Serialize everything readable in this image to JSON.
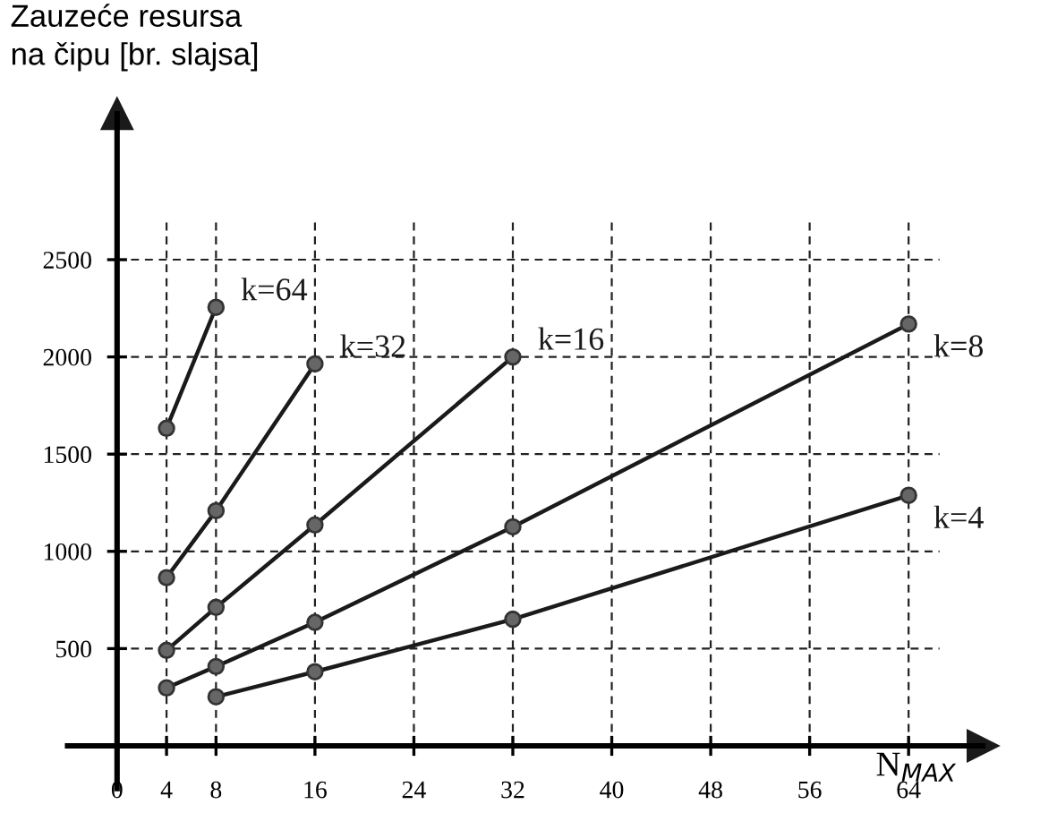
{
  "chart_data": {
    "type": "line",
    "ylabel": "Zauzeće resursa\nna čipu [br. slajsa]",
    "xlabel": "N$_{MAX}$",
    "xlim": [
      -4,
      70
    ],
    "ylim": [
      -220,
      3250
    ],
    "xticks": [
      0,
      4,
      8,
      16,
      24,
      32,
      40,
      48,
      56,
      64
    ],
    "yticks": [
      500,
      1000,
      1500,
      2000,
      2500
    ],
    "grid": true,
    "marker": "circle",
    "line_style": "solid",
    "series": [
      {
        "name": "k=64",
        "color": "#1a1a1a",
        "x": [
          4,
          8
        ],
        "values": [
          1633,
          2255
        ]
      },
      {
        "name": "k=32",
        "color": "#1a1a1a",
        "x": [
          4,
          8,
          16
        ],
        "values": [
          865,
          1209,
          1964
        ]
      },
      {
        "name": "k=16",
        "color": "#1a1a1a",
        "x": [
          4,
          8,
          16,
          32
        ],
        "values": [
          491,
          712,
          1136,
          2000
        ]
      },
      {
        "name": "k=8",
        "color": "#1a1a1a",
        "x": [
          4,
          8,
          16,
          32,
          64
        ],
        "values": [
          298,
          408,
          635,
          1126,
          2169
        ]
      },
      {
        "name": "k=4",
        "color": "#1a1a1a",
        "x": [
          8,
          16,
          32,
          64
        ],
        "values": [
          252,
          381,
          651,
          1288
        ]
      }
    ]
  }
}
